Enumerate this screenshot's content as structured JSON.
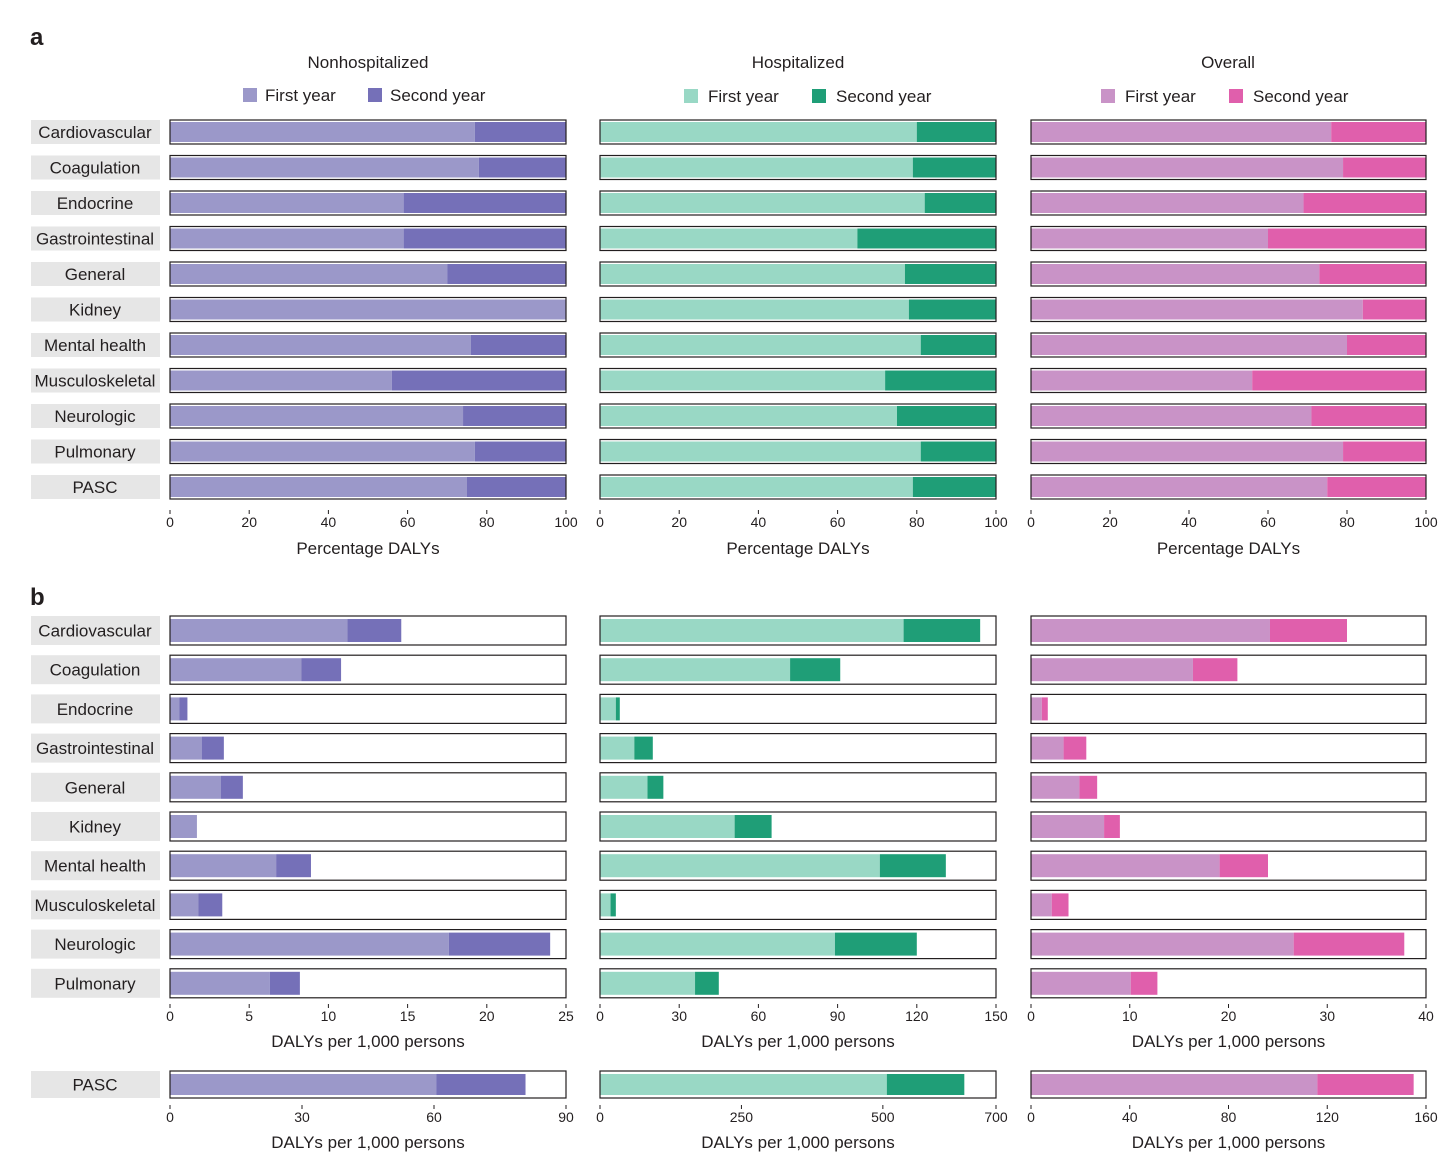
{
  "panel_letters": [
    "a",
    "b"
  ],
  "columns": [
    {
      "title": "Nonhospitalized",
      "first_color": "#9b98c9",
      "second_color": "#7570b8"
    },
    {
      "title": "Hospitalized",
      "first_color": "#99d8c5",
      "second_color": "#1f9e77"
    },
    {
      "title": "Overall",
      "first_color": "#c993c7",
      "second_color": "#e05fac"
    }
  ],
  "legend": {
    "first": "First year",
    "second": "Second year"
  },
  "categories": [
    "Cardiovascular",
    "Coagulation",
    "Endocrine",
    "Gastrointestinal",
    "General",
    "Kidney",
    "Mental health",
    "Musculoskeletal",
    "Neurologic",
    "Pulmonary",
    "PASC"
  ],
  "chart_data": [
    {
      "type": "bar",
      "panel": "a",
      "orientation": "horizontal",
      "stacked": true,
      "xlabel": "Percentage DALYs",
      "xlim": [
        0,
        100
      ],
      "xticks": [
        0,
        20,
        40,
        60,
        80,
        100
      ],
      "groups": [
        {
          "column": "Nonhospitalized",
          "series": [
            {
              "name": "First year",
              "values": [
                77,
                78,
                59,
                59,
                70,
                100,
                76,
                56,
                74,
                77,
                75
              ]
            },
            {
              "name": "Second year",
              "values": [
                23,
                22,
                41,
                41,
                30,
                0,
                24,
                44,
                26,
                23,
                25
              ]
            }
          ]
        },
        {
          "column": "Hospitalized",
          "series": [
            {
              "name": "First year",
              "values": [
                80,
                79,
                82,
                65,
                77,
                78,
                81,
                72,
                75,
                81,
                79
              ]
            },
            {
              "name": "Second year",
              "values": [
                20,
                21,
                18,
                35,
                23,
                22,
                19,
                28,
                25,
                19,
                21
              ]
            }
          ]
        },
        {
          "column": "Overall",
          "series": [
            {
              "name": "First year",
              "values": [
                76,
                79,
                69,
                60,
                73,
                84,
                80,
                56,
                71,
                79,
                75
              ]
            },
            {
              "name": "Second year",
              "values": [
                24,
                21,
                31,
                40,
                27,
                16,
                20,
                44,
                29,
                21,
                25
              ]
            }
          ]
        }
      ]
    },
    {
      "type": "bar",
      "panel": "b",
      "orientation": "horizontal",
      "stacked": true,
      "xlabel": "DALYs per 1,000 persons",
      "categories": [
        "Cardiovascular",
        "Coagulation",
        "Endocrine",
        "Gastrointestinal",
        "General",
        "Kidney",
        "Mental health",
        "Musculoskeletal",
        "Neurologic",
        "Pulmonary"
      ],
      "groups": [
        {
          "column": "Nonhospitalized",
          "xlim": [
            0,
            25
          ],
          "xticks": [
            0,
            5,
            10,
            15,
            20,
            25
          ],
          "series": [
            {
              "name": "First year",
              "values": [
                11.2,
                8.3,
                0.6,
                2.0,
                3.2,
                1.7,
                6.7,
                1.8,
                17.6,
                6.3
              ]
            },
            {
              "name": "Second year",
              "values": [
                3.4,
                2.5,
                0.5,
                1.4,
                1.4,
                0,
                2.2,
                1.5,
                6.4,
                1.9
              ]
            }
          ]
        },
        {
          "column": "Hospitalized",
          "xlim": [
            0,
            150
          ],
          "xticks": [
            0,
            30,
            60,
            90,
            120,
            150
          ],
          "series": [
            {
              "name": "First year",
              "values": [
                115,
                72,
                6,
                13,
                18,
                51,
                106,
                4,
                89,
                36
              ]
            },
            {
              "name": "Second year",
              "values": [
                29,
                19,
                1.5,
                7,
                6,
                14,
                25,
                2,
                31,
                9
              ]
            }
          ]
        },
        {
          "column": "Overall",
          "xlim": [
            0,
            40
          ],
          "xticks": [
            0,
            10,
            20,
            30,
            40
          ],
          "series": [
            {
              "name": "First year",
              "values": [
                24.2,
                16.4,
                1.1,
                3.3,
                4.9,
                7.4,
                19.1,
                2.1,
                26.6,
                10.1
              ]
            },
            {
              "name": "Second year",
              "values": [
                7.8,
                4.5,
                0.6,
                2.3,
                1.8,
                1.6,
                4.9,
                1.7,
                11.2,
                2.7
              ]
            }
          ]
        }
      ]
    },
    {
      "type": "bar",
      "panel": "b-pasc",
      "orientation": "horizontal",
      "stacked": true,
      "xlabel": "DALYs per 1,000 persons",
      "categories": [
        "PASC"
      ],
      "groups": [
        {
          "column": "Nonhospitalized",
          "xlim": [
            0,
            90
          ],
          "xticks": [
            0,
            30,
            60,
            90
          ],
          "series": [
            {
              "name": "First year",
              "values": [
                60.5
              ]
            },
            {
              "name": "Second year",
              "values": [
                20.3
              ]
            }
          ]
        },
        {
          "column": "Hospitalized",
          "xlim": [
            0,
            700
          ],
          "xticks": [
            0,
            250,
            500,
            700
          ],
          "series": [
            {
              "name": "First year",
              "values": [
                507
              ]
            },
            {
              "name": "Second year",
              "values": [
                137
              ]
            }
          ]
        },
        {
          "column": "Overall",
          "xlim": [
            0,
            160
          ],
          "xticks": [
            0,
            40,
            80,
            120,
            160
          ],
          "series": [
            {
              "name": "First year",
              "values": [
                116
              ]
            },
            {
              "name": "Second year",
              "values": [
                39
              ]
            }
          ]
        }
      ]
    }
  ]
}
